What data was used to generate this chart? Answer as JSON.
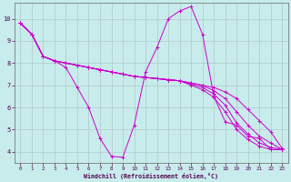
{
  "xlabel": "Windchill (Refroidissement éolien,°C)",
  "bg_color": "#c8ecec",
  "line_color": "#cc00cc",
  "grid_color": "#b0c8c8",
  "xlim": [
    -0.5,
    23.5
  ],
  "ylim": [
    3.5,
    10.7
  ],
  "xticks": [
    0,
    1,
    2,
    3,
    4,
    5,
    6,
    7,
    8,
    9,
    10,
    11,
    12,
    13,
    14,
    15,
    16,
    17,
    18,
    19,
    20,
    21,
    22,
    23
  ],
  "yticks": [
    4,
    5,
    6,
    7,
    8,
    9,
    10
  ],
  "series": [
    {
      "x": [
        0,
        1,
        2,
        3,
        4,
        5,
        6,
        7,
        8,
        9,
        10,
        11,
        12,
        13,
        14,
        15,
        16,
        17,
        18,
        19,
        20,
        21,
        22,
        23
      ],
      "y": [
        9.8,
        9.3,
        8.3,
        8.1,
        7.8,
        6.9,
        6.0,
        4.6,
        3.8,
        3.75,
        5.2,
        7.6,
        8.7,
        10.0,
        10.35,
        10.55,
        9.3,
        6.5,
        5.35,
        5.2,
        4.7,
        4.6,
        4.1,
        4.1
      ]
    },
    {
      "x": [
        0,
        1,
        2,
        3,
        4,
        5,
        6,
        7,
        8,
        9,
        10,
        11,
        12,
        13,
        14,
        15,
        16,
        17,
        18,
        19,
        20,
        21,
        22,
        23
      ],
      "y": [
        9.8,
        9.3,
        8.3,
        8.1,
        8.0,
        7.9,
        7.8,
        7.7,
        7.6,
        7.5,
        7.4,
        7.35,
        7.3,
        7.25,
        7.2,
        7.1,
        7.0,
        6.9,
        6.7,
        6.4,
        5.9,
        5.4,
        4.9,
        4.15
      ]
    },
    {
      "x": [
        0,
        1,
        2,
        3,
        4,
        5,
        6,
        7,
        8,
        9,
        10,
        11,
        12,
        13,
        14,
        15,
        16,
        17,
        18,
        19,
        20,
        21,
        22,
        23
      ],
      "y": [
        9.8,
        9.3,
        8.3,
        8.1,
        8.0,
        7.9,
        7.8,
        7.7,
        7.6,
        7.5,
        7.4,
        7.35,
        7.3,
        7.25,
        7.2,
        7.1,
        7.0,
        6.75,
        6.4,
        5.8,
        5.2,
        4.7,
        4.4,
        4.1
      ]
    },
    {
      "x": [
        0,
        1,
        2,
        3,
        4,
        5,
        6,
        7,
        8,
        9,
        10,
        11,
        12,
        13,
        14,
        15,
        16,
        17,
        18,
        19,
        20,
        21,
        22,
        23
      ],
      "y": [
        9.8,
        9.3,
        8.3,
        8.1,
        8.0,
        7.9,
        7.8,
        7.7,
        7.6,
        7.5,
        7.4,
        7.35,
        7.3,
        7.25,
        7.2,
        7.05,
        6.9,
        6.6,
        6.1,
        5.3,
        4.8,
        4.4,
        4.2,
        4.1
      ]
    },
    {
      "x": [
        0,
        1,
        2,
        3,
        4,
        5,
        6,
        7,
        8,
        9,
        10,
        11,
        12,
        13,
        14,
        15,
        16,
        17,
        18,
        19,
        20,
        21,
        22,
        23
      ],
      "y": [
        9.8,
        9.3,
        8.3,
        8.1,
        8.0,
        7.9,
        7.8,
        7.7,
        7.6,
        7.5,
        7.4,
        7.35,
        7.3,
        7.25,
        7.2,
        7.0,
        6.8,
        6.45,
        5.8,
        5.0,
        4.55,
        4.25,
        4.1,
        4.1
      ]
    }
  ]
}
